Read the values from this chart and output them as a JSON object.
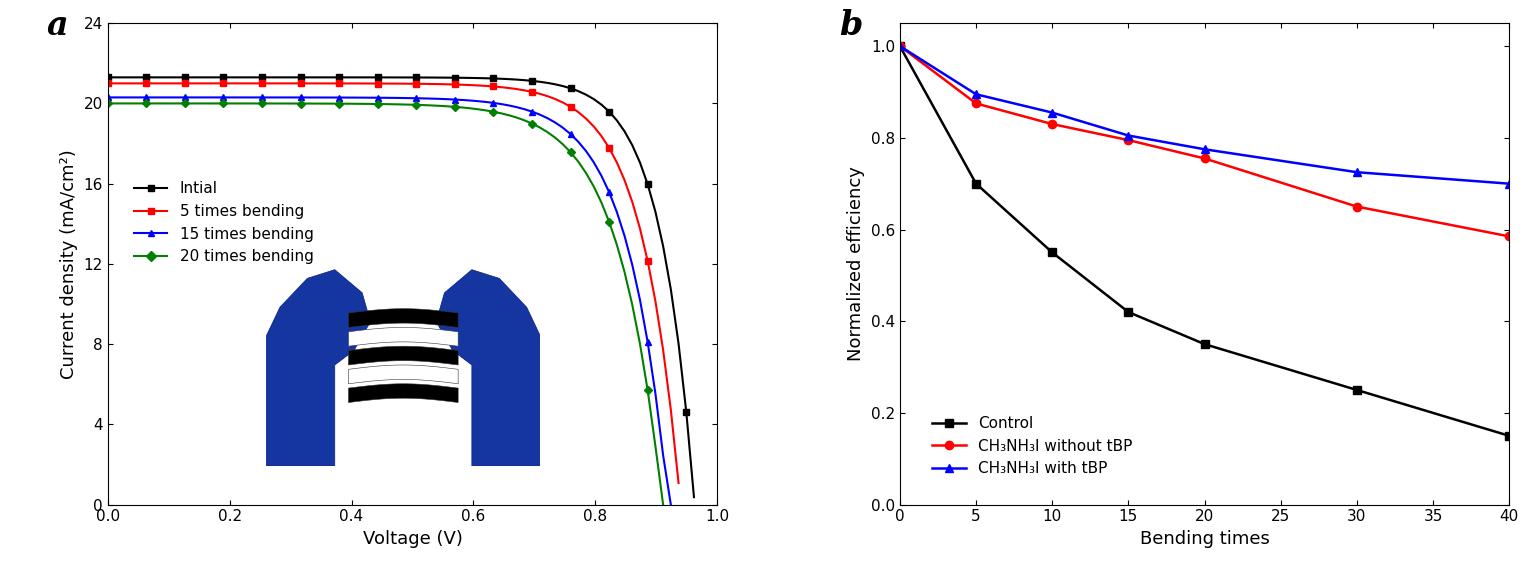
{
  "panel_a": {
    "title_label": "a",
    "xlabel": "Voltage (V)",
    "ylabel": "Current density (mA/cm²)",
    "xlim": [
      0.0,
      1.0
    ],
    "ylim": [
      0,
      24
    ],
    "yticks": [
      0,
      4,
      8,
      12,
      16,
      20,
      24
    ],
    "xticks": [
      0.0,
      0.2,
      0.4,
      0.6,
      0.8,
      1.0
    ],
    "curves": [
      {
        "label": "Intial",
        "color": "black",
        "marker": "s",
        "jsc": 21.3,
        "voc": 0.963,
        "n": 18.0
      },
      {
        "label": "5 times bending",
        "color": "red",
        "marker": "s",
        "jsc": 21.0,
        "voc": 0.94,
        "n": 16.0
      },
      {
        "label": "15 times bending",
        "color": "blue",
        "marker": "^",
        "jsc": 20.3,
        "voc": 0.92,
        "n": 15.0
      },
      {
        "label": "20 times bending",
        "color": "green",
        "marker": "D",
        "jsc": 20.0,
        "voc": 0.91,
        "n": 14.0
      }
    ]
  },
  "panel_b": {
    "title_label": "b",
    "xlabel": "Bending times",
    "ylabel": "Normalized efficiency",
    "xlim": [
      0,
      40
    ],
    "ylim": [
      0.0,
      1.05
    ],
    "yticks": [
      0.0,
      0.2,
      0.4,
      0.6,
      0.8,
      1.0
    ],
    "xticks": [
      0,
      5,
      10,
      15,
      20,
      25,
      30,
      35,
      40
    ],
    "curves": [
      {
        "label": "Control",
        "color": "black",
        "marker": "s",
        "x": [
          0,
          5,
          10,
          15,
          20,
          30,
          40
        ],
        "y": [
          1.0,
          0.7,
          0.55,
          0.42,
          0.35,
          0.25,
          0.15
        ]
      },
      {
        "label": "CH₃NH₃I without tBP",
        "color": "red",
        "marker": "o",
        "x": [
          0,
          5,
          10,
          15,
          20,
          30,
          40
        ],
        "y": [
          1.0,
          0.875,
          0.83,
          0.795,
          0.755,
          0.65,
          0.585
        ]
      },
      {
        "label": "CH₃NH₃I with tBP",
        "color": "blue",
        "marker": "^",
        "x": [
          0,
          5,
          10,
          15,
          20,
          30,
          40
        ],
        "y": [
          1.0,
          0.895,
          0.855,
          0.805,
          0.775,
          0.725,
          0.7
        ]
      }
    ]
  }
}
